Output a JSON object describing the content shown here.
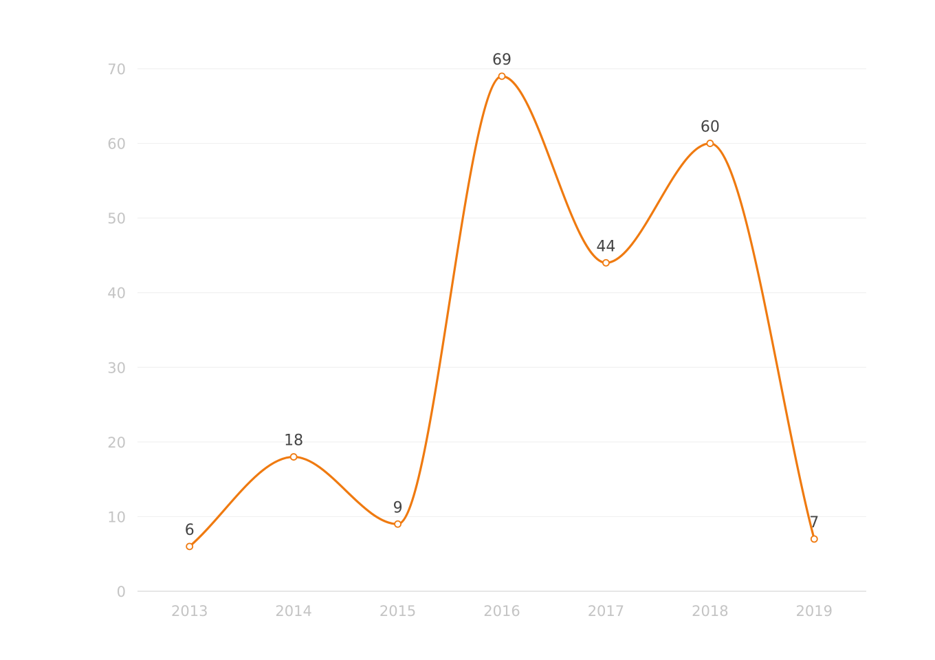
{
  "chart_data": {
    "type": "line",
    "smooth": true,
    "title": "",
    "xlabel": "",
    "ylabel": "",
    "categories": [
      "2013",
      "2014",
      "2015",
      "2016",
      "2017",
      "2018",
      "2019"
    ],
    "series": [
      {
        "values": [
          6,
          18,
          9,
          69,
          44,
          60,
          7
        ],
        "color": "#ef7a10"
      }
    ],
    "ylim": [
      0,
      70
    ],
    "yticks": [
      0,
      10,
      20,
      30,
      40,
      50,
      60,
      70
    ],
    "grid": "horizontal",
    "data_labels": true
  }
}
